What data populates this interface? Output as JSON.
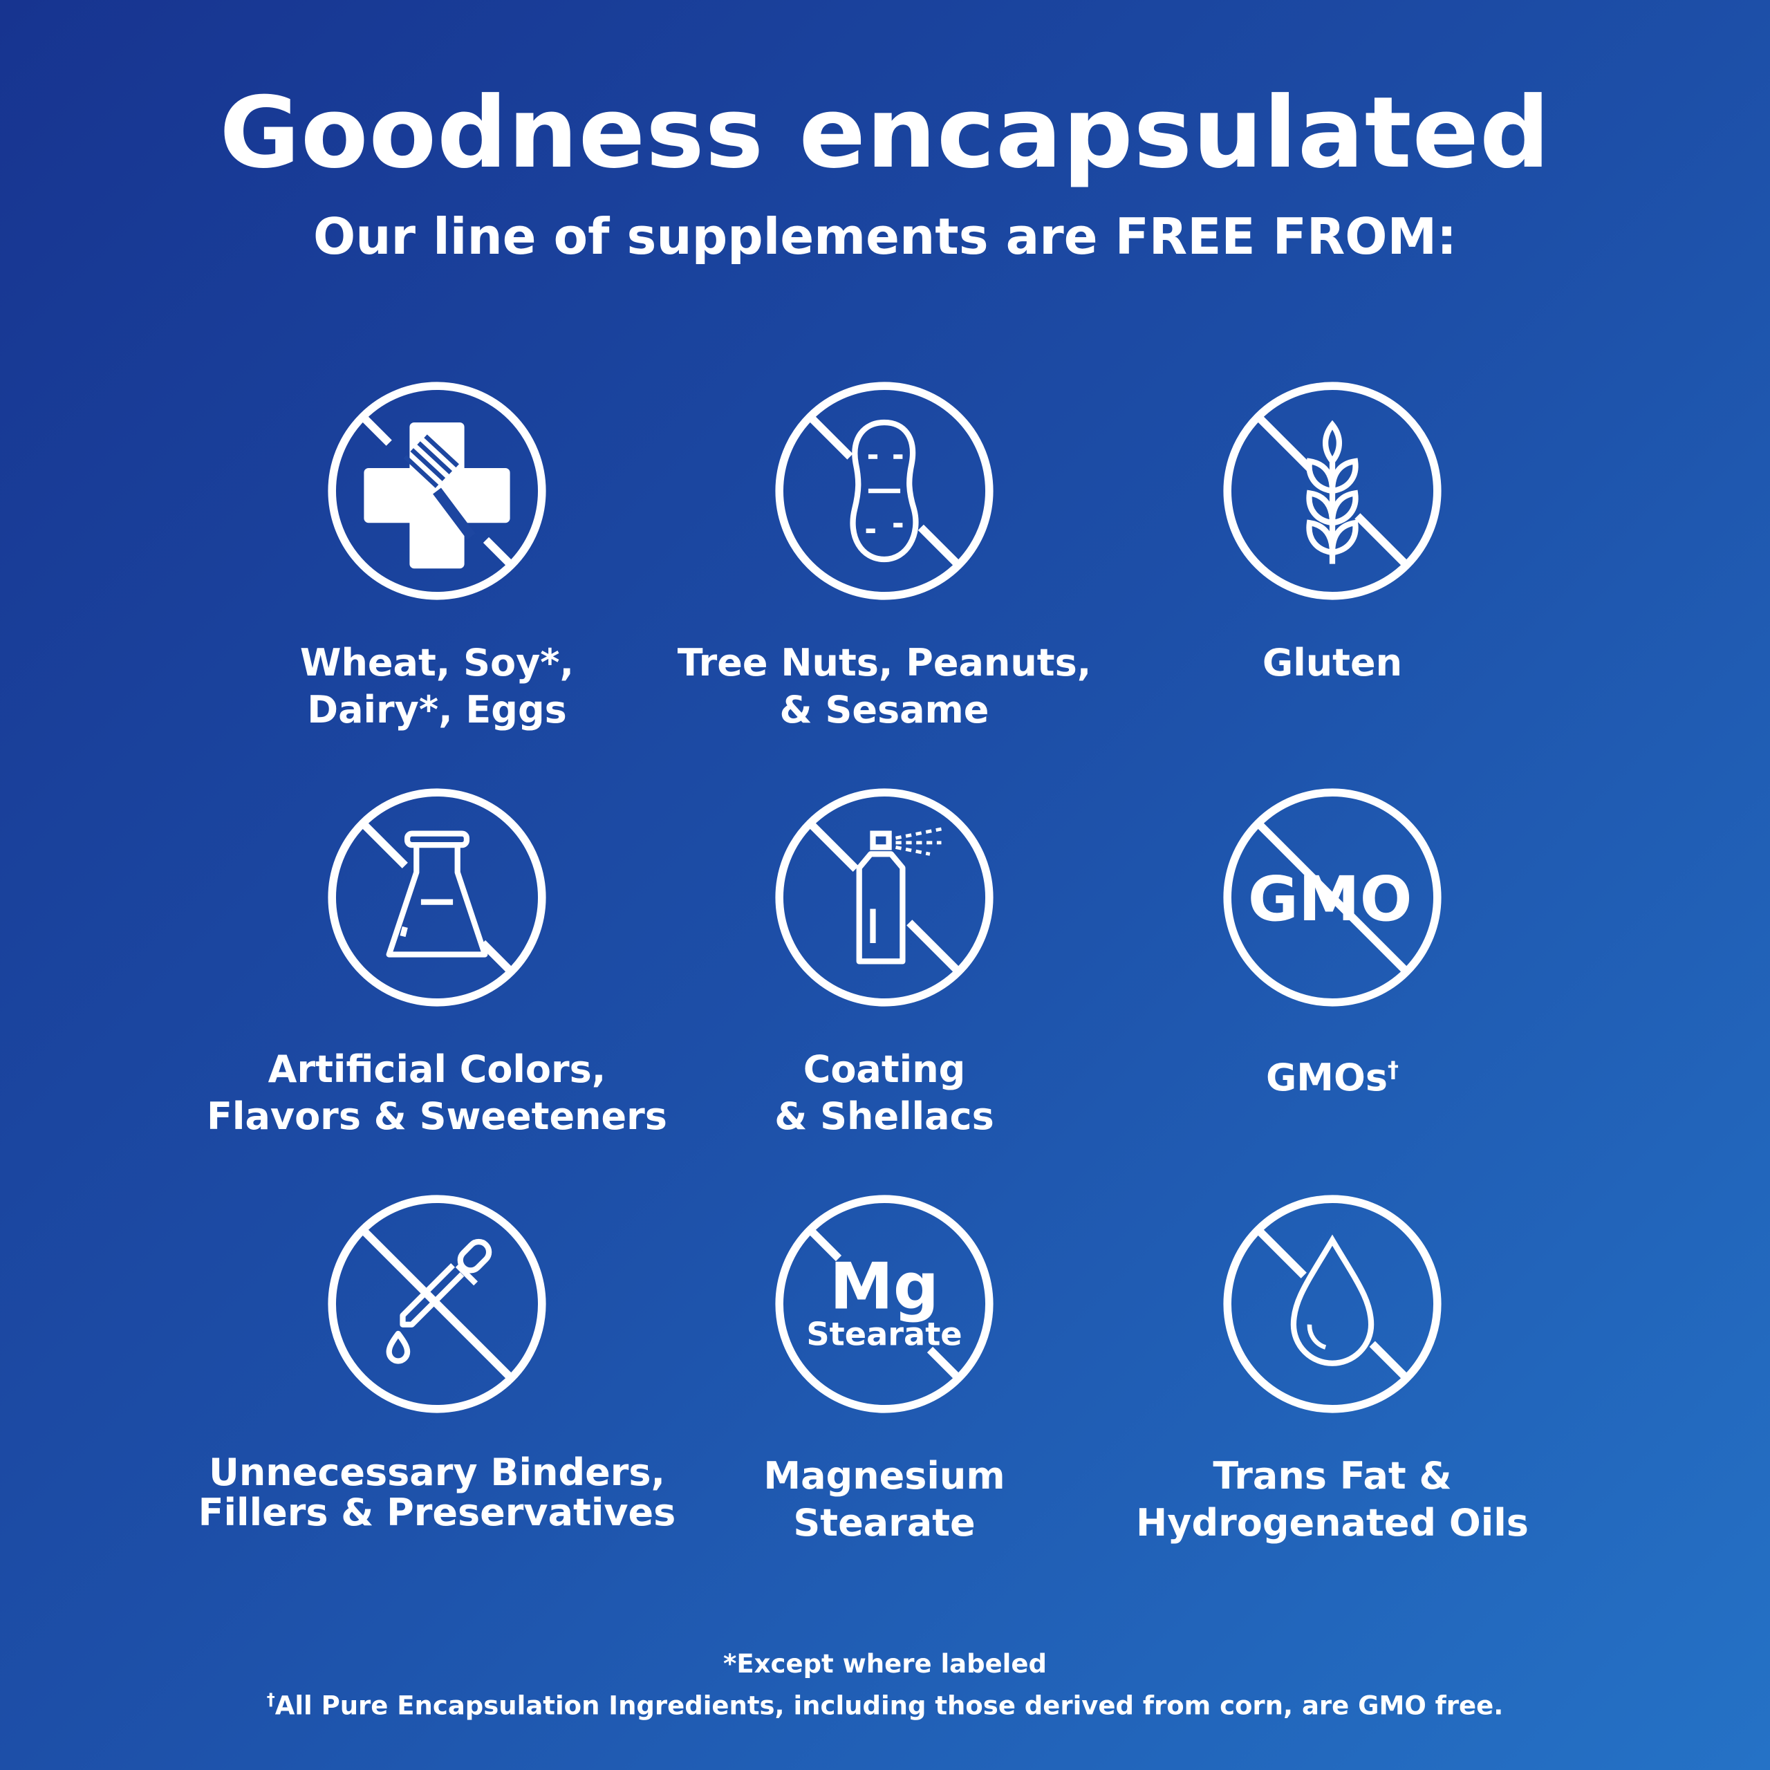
{
  "header": {
    "title": "Goodness encapsulated",
    "subtitle": "Our line of supplements are FREE FROM:"
  },
  "items": [
    {
      "icon": "wheat-dairy-cross-icon",
      "lines": [
        "Wheat, Soy*,",
        "Dairy*, Eggs"
      ]
    },
    {
      "icon": "peanut-icon",
      "lines": [
        "Tree Nuts, Peanuts,",
        "& Sesame"
      ]
    },
    {
      "icon": "wheat-stalk-icon",
      "lines": [
        "Gluten"
      ]
    },
    {
      "icon": "flask-icon",
      "lines": [
        "Artificial Colors,",
        "Flavors & Sweeteners"
      ]
    },
    {
      "icon": "spray-can-icon",
      "lines": [
        "Coating",
        "& Shellacs"
      ]
    },
    {
      "icon": "gmo-icon",
      "icon_text": "GMO",
      "lines": [
        "GMOs"
      ],
      "sup": "†"
    },
    {
      "icon": "dropper-icon",
      "lines": [
        "Unnecessary Binders,",
        "Fillers & Preservatives"
      ]
    },
    {
      "icon": "mg-stearate-icon",
      "icon_text": "Mg",
      "icon_subtext": "Stearate",
      "lines": [
        "Magnesium",
        "Stearate"
      ]
    },
    {
      "icon": "oil-drop-icon",
      "lines": [
        "Trans Fat &",
        "Hydrogenated Oils"
      ]
    }
  ],
  "footnotes": {
    "note1": "*Except where labeled",
    "note2_mark": "†",
    "note2": "All Pure Encapsulation Ingredients, including those derived from corn, are GMO free."
  },
  "colors": {
    "background_start": "#173490",
    "background_end": "#2572c6",
    "foreground": "#ffffff"
  }
}
